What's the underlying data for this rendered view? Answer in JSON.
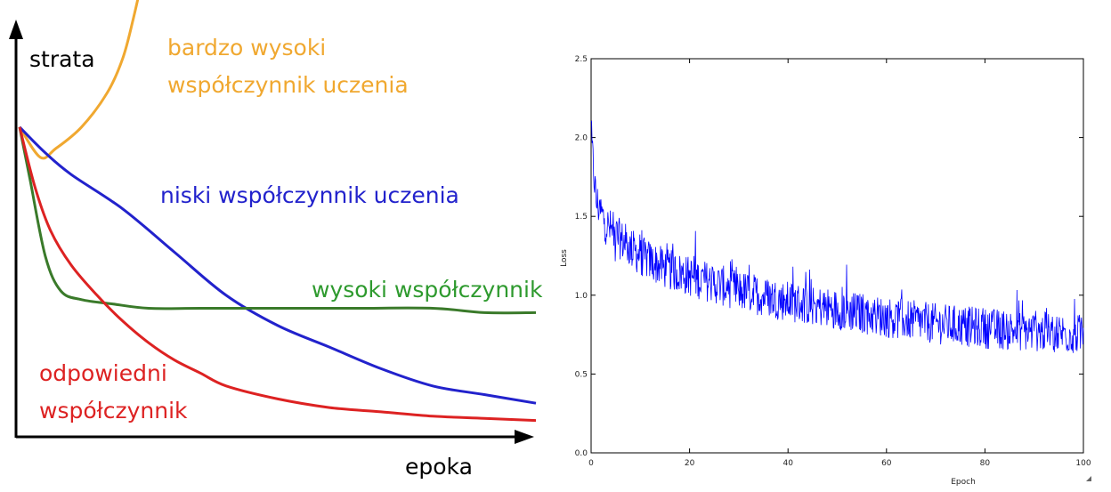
{
  "chart_data": [
    {
      "type": "line",
      "title": "",
      "xlabel": "epoka",
      "ylabel": "strata",
      "axes_ticks": false,
      "series": [
        {
          "name": "bardzo wysoki współczynnik uczenia",
          "name_lines": [
            "bardzo wysoki",
            "współczynnik uczenia"
          ],
          "color": "#f0a830",
          "x": [
            0,
            0.04,
            0.07,
            0.12,
            0.17,
            0.2,
            0.22,
            0.24,
            0.25
          ],
          "y": [
            0.72,
            0.65,
            0.67,
            0.72,
            0.8,
            0.88,
            0.97,
            1.08,
            1.16
          ]
        },
        {
          "name": "niski współczynnik uczenia",
          "name_lines": [
            "niski współczynnik uczenia"
          ],
          "color": "#2222cc",
          "x": [
            0,
            0.05,
            0.1,
            0.2,
            0.3,
            0.4,
            0.5,
            0.6,
            0.7,
            0.8,
            0.9,
            1.0
          ],
          "y": [
            0.72,
            0.66,
            0.61,
            0.53,
            0.43,
            0.33,
            0.26,
            0.21,
            0.16,
            0.12,
            0.1,
            0.08
          ]
        },
        {
          "name": "wysoki współczynnik",
          "name_lines": [
            "wysoki współczynnik"
          ],
          "color": "#3a7a2a",
          "x": [
            0,
            0.02,
            0.05,
            0.08,
            0.12,
            0.18,
            0.25,
            0.35,
            0.5,
            0.65,
            0.8,
            0.9,
            1.0
          ],
          "y": [
            0.72,
            0.6,
            0.42,
            0.34,
            0.32,
            0.31,
            0.3,
            0.3,
            0.3,
            0.3,
            0.3,
            0.29,
            0.29
          ]
        },
        {
          "name": "odpowiedni współczynnik",
          "name_lines": [
            "odpowiedni",
            "współczynnik"
          ],
          "color": "#dd2222",
          "x": [
            0,
            0.03,
            0.06,
            0.1,
            0.15,
            0.2,
            0.25,
            0.3,
            0.35,
            0.4,
            0.5,
            0.6,
            0.7,
            0.8,
            0.9,
            1.0
          ],
          "y": [
            0.72,
            0.58,
            0.48,
            0.4,
            0.33,
            0.27,
            0.22,
            0.18,
            0.15,
            0.12,
            0.09,
            0.07,
            0.06,
            0.05,
            0.045,
            0.04
          ]
        }
      ]
    },
    {
      "type": "line",
      "title": "",
      "xlabel": "Epoch",
      "ylabel": "Loss",
      "xlim": [
        0,
        100
      ],
      "ylim": [
        0,
        2.5
      ],
      "x_ticks": [
        "0",
        "20",
        "40",
        "60",
        "80",
        "100"
      ],
      "y_ticks": [
        "0.0",
        "0.5",
        "1.0",
        "1.5",
        "2.0",
        "2.5"
      ],
      "color": "#0000ff",
      "trend": {
        "x": [
          0,
          1,
          3,
          5,
          8,
          10,
          15,
          20,
          30,
          40,
          50,
          60,
          70,
          80,
          90,
          100
        ],
        "y": [
          2.0,
          1.6,
          1.45,
          1.38,
          1.3,
          1.25,
          1.17,
          1.12,
          1.03,
          0.96,
          0.91,
          0.86,
          0.82,
          0.79,
          0.77,
          0.75
        ]
      },
      "noise_amplitude": 0.13,
      "points": 1000
    }
  ]
}
